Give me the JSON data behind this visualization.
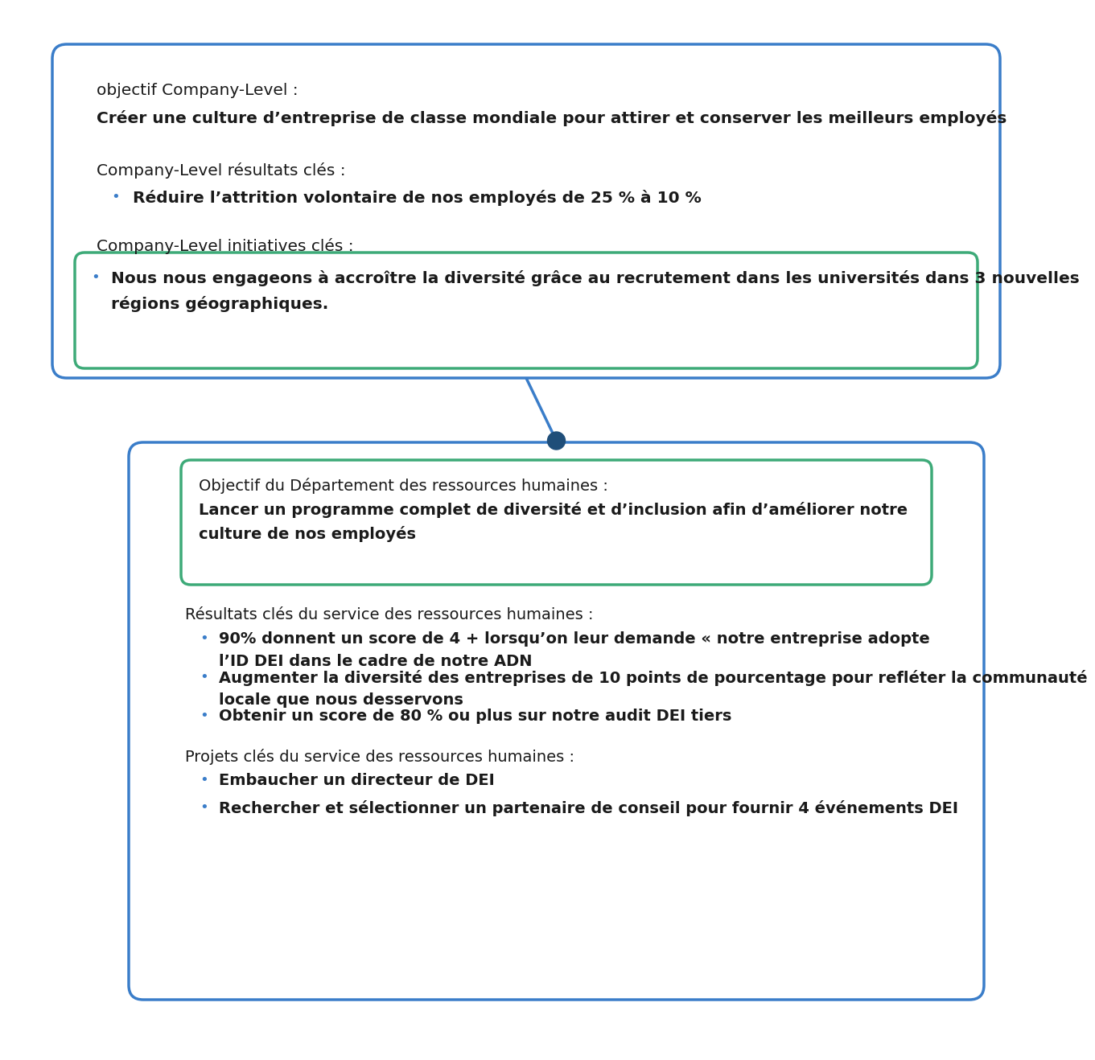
{
  "bg_color": "#ffffff",
  "blue_border": "#3A7DC9",
  "green_border": "#3DAA78",
  "text_color": "#1a1a1a",
  "dot_color": "#1F4E79",
  "top_box": {
    "label_objective": "objectif Company-Level :",
    "objective": "Créer une culture d’entreprise de classe mondiale pour attirer et conserver les meilleurs employés",
    "label_results": "Company-Level résultats clés :",
    "results": [
      "Réduire l’attrition volontaire de nos employés de 25 % à 10 %"
    ],
    "label_initiatives": "Company-Level initiatives clés :",
    "initiatives": [
      "Nous nous engageons à accroître la diversité grâce au recrutement dans les universités dans 3 nouvelles\nrégions géographiques."
    ]
  },
  "bottom_box": {
    "label_objective": "Objectif du Département des ressources humaines :",
    "objective": "Lancer un programme complet de diversité et d’inclusion afin d’améliorer notre\nculture de nos employés",
    "label_results": "Résultats clés du service des ressources humaines :",
    "results": [
      "90% donnent un score de 4 + lorsqu’on leur demande « notre entreprise adopte\nl’ID DEI dans le cadre de notre ADN",
      "Augmenter la diversité des entreprises de 10 points de pourcentage pour refléter la communauté\nlocale que nous desservons",
      "Obtenir un score de 80 % ou plus sur notre audit DEI tiers"
    ],
    "label_projects": "Projets clés du service des ressources humaines :",
    "projects": [
      "Embaucher un directeur de DEI",
      "Rechercher et sélectionner un partenaire de conseil pour fournir 4 événements DEI"
    ]
  }
}
